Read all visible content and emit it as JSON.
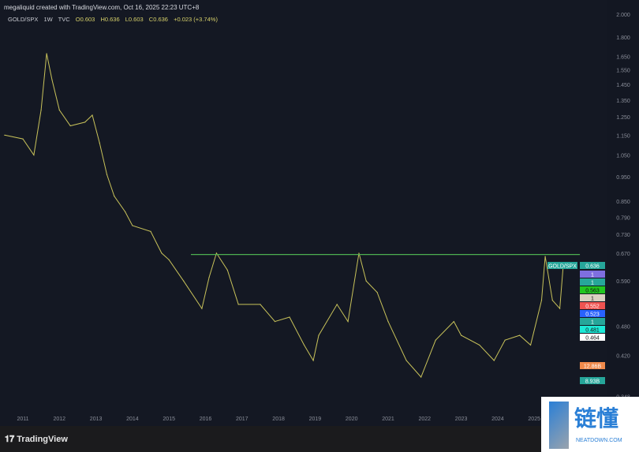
{
  "header": {
    "credit": "megaliquid created with TradingView.com, Oct 16, 2025 22:23 UTC+8",
    "symbol": "GOLD/SPX",
    "interval": "1W",
    "source": "TVC",
    "open": "O0.603",
    "high": "H0.636",
    "low": "L0.603",
    "close": "C0.636",
    "change": "+0.023 (+3.74%)"
  },
  "footer": {
    "brand": "TradingView"
  },
  "watermark": {
    "cn": "链懂",
    "en": "NEATDOWN.COM"
  },
  "chart_data": {
    "type": "line",
    "title": "GOLD/SPX",
    "scale": "log",
    "ylim": [
      0.33,
      2.05
    ],
    "xlim": [
      2010.5,
      2026.6
    ],
    "x_ticks": [
      "2011",
      "2012",
      "2013",
      "2014",
      "2015",
      "2016",
      "2017",
      "2018",
      "2019",
      "2020",
      "2021",
      "2022",
      "2023",
      "2024",
      "2025"
    ],
    "y_ticks": [
      "2.000",
      "1.800",
      "1.650",
      "1.550",
      "1.450",
      "1.350",
      "1.250",
      "1.150",
      "1.050",
      "0.950",
      "0.850",
      "0.790",
      "0.730",
      "0.670",
      "0.590",
      "0.480",
      "0.420",
      "0.348"
    ],
    "series": [
      {
        "color": "#c8c25a",
        "x": [
          2010.5,
          2011.0,
          2011.3,
          2011.5,
          2011.65,
          2011.8,
          2012.0,
          2012.3,
          2012.7,
          2012.9,
          2013.1,
          2013.3,
          2013.5,
          2013.8,
          2014.0,
          2014.5,
          2014.8,
          2015.0,
          2015.4,
          2015.9,
          2016.1,
          2016.3,
          2016.6,
          2016.9,
          2017.5,
          2017.9,
          2018.3,
          2018.7,
          2018.95,
          2019.1,
          2019.6,
          2019.9,
          2020.2,
          2020.4,
          2020.7,
          2021.0,
          2021.5,
          2021.9,
          2022.3,
          2022.8,
          2023.0,
          2023.5,
          2023.9,
          2024.2,
          2024.6,
          2024.9,
          2025.2,
          2025.3,
          2025.5,
          2025.7,
          2025.8
        ],
        "y": [
          1.15,
          1.13,
          1.05,
          1.29,
          1.67,
          1.48,
          1.29,
          1.2,
          1.22,
          1.26,
          1.11,
          0.96,
          0.87,
          0.81,
          0.76,
          0.74,
          0.67,
          0.65,
          0.59,
          0.52,
          0.6,
          0.67,
          0.62,
          0.53,
          0.53,
          0.49,
          0.5,
          0.44,
          0.41,
          0.46,
          0.53,
          0.49,
          0.67,
          0.59,
          0.56,
          0.49,
          0.41,
          0.38,
          0.45,
          0.49,
          0.46,
          0.44,
          0.41,
          0.45,
          0.46,
          0.44,
          0.54,
          0.66,
          0.54,
          0.52,
          0.64
        ]
      }
    ],
    "hline": {
      "value": 0.666,
      "x_from": 2015.6,
      "x_to": 2026.25,
      "color": "#4caf50"
    },
    "badges": [
      {
        "text": "GOLD/SPX",
        "color": "#26a69a"
      },
      {
        "text": "0.636",
        "color": "#26a69a"
      },
      {
        "text": "1",
        "color": "#7e6fe0"
      },
      {
        "text": "1",
        "color": "#26a69a"
      },
      {
        "text": "0.563",
        "color": "#22c620"
      },
      {
        "text": "1",
        "color": "#d9d0c0"
      },
      {
        "text": "0.552",
        "color": "#ef5350"
      },
      {
        "text": "0.523",
        "color": "#2962ff"
      },
      {
        "text": "1",
        "color": "#26a69a"
      },
      {
        "text": "0.481",
        "color": "#1de9d6"
      },
      {
        "text": "0.464",
        "color": "#ffffff"
      },
      {
        "text": "12.86B",
        "color": "#f08a4b"
      },
      {
        "text": "8.93B",
        "color": "#26a69a"
      }
    ]
  }
}
